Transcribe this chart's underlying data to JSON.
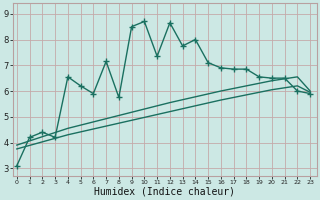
{
  "bg_color": "#cce8e4",
  "grid_color": "#b8d4d0",
  "grid_border_color": "#c4aaaa",
  "line_color": "#1a7060",
  "xlabel": "Humidex (Indice chaleur)",
  "xlabel_fontsize": 7,
  "ytick_labels": [
    "3",
    "4",
    "5",
    "6",
    "7",
    "8",
    "9"
  ],
  "ytick_vals": [
    3,
    4,
    5,
    6,
    7,
    8,
    9
  ],
  "xtick_vals": [
    0,
    1,
    2,
    3,
    4,
    5,
    6,
    7,
    8,
    9,
    10,
    11,
    12,
    13,
    14,
    15,
    16,
    17,
    18,
    19,
    20,
    21,
    22,
    23
  ],
  "xlim": [
    -0.3,
    23.5
  ],
  "ylim": [
    2.7,
    9.4
  ],
  "jagged_x": [
    0,
    1,
    2,
    3,
    4,
    5,
    6,
    7,
    8,
    9,
    10,
    11,
    12,
    13,
    14,
    15,
    16,
    17,
    18,
    19,
    20,
    21,
    22,
    23
  ],
  "jagged_y": [
    3.1,
    4.2,
    4.4,
    4.2,
    6.55,
    6.2,
    5.9,
    7.15,
    5.75,
    8.5,
    8.7,
    7.35,
    8.65,
    7.75,
    8.0,
    7.1,
    6.9,
    6.85,
    6.85,
    6.55,
    6.5,
    6.5,
    6.0,
    5.9
  ],
  "trend1_x": [
    0,
    4,
    8,
    12,
    16,
    20,
    22,
    23
  ],
  "trend1_y": [
    3.9,
    4.55,
    5.05,
    5.55,
    6.0,
    6.4,
    6.55,
    6.0
  ],
  "trend2_x": [
    0,
    4,
    8,
    12,
    16,
    20,
    22,
    23
  ],
  "trend2_y": [
    3.75,
    4.3,
    4.75,
    5.2,
    5.65,
    6.05,
    6.2,
    5.95
  ],
  "line_width": 1.0,
  "marker_size": 3.5
}
